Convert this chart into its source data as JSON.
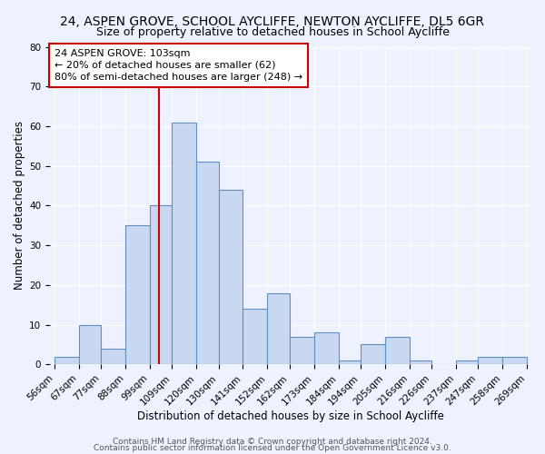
{
  "title": "24, ASPEN GROVE, SCHOOL AYCLIFFE, NEWTON AYCLIFFE, DL5 6GR",
  "subtitle": "Size of property relative to detached houses in School Aycliffe",
  "xlabel": "Distribution of detached houses by size in School Aycliffe",
  "ylabel": "Number of detached properties",
  "bin_edges": [
    56,
    67,
    77,
    88,
    99,
    109,
    120,
    130,
    141,
    152,
    162,
    173,
    184,
    194,
    205,
    216,
    226,
    237,
    247,
    258,
    269
  ],
  "bar_heights": [
    2,
    10,
    4,
    35,
    40,
    61,
    51,
    44,
    14,
    18,
    7,
    8,
    1,
    5,
    7,
    1,
    0,
    1,
    2,
    2
  ],
  "bar_color": "#c8d8f0",
  "bar_edge_color": "#6090c0",
  "property_size": 103,
  "redline_color": "#cc0000",
  "annotation_line1": "24 ASPEN GROVE: 103sqm",
  "annotation_line2": "← 20% of detached houses are smaller (62)",
  "annotation_line3": "80% of semi-detached houses are larger (248) →",
  "annotation_box_color": "#ffffff",
  "annotation_box_edge": "#cc0000",
  "ylim": [
    0,
    80
  ],
  "yticks": [
    0,
    10,
    20,
    30,
    40,
    50,
    60,
    70,
    80
  ],
  "footer_line1": "Contains HM Land Registry data © Crown copyright and database right 2024.",
  "footer_line2": "Contains public sector information licensed under the Open Government Licence v3.0.",
  "title_fontsize": 10,
  "subtitle_fontsize": 9,
  "axis_label_fontsize": 8.5,
  "tick_fontsize": 7.5,
  "annotation_fontsize": 8,
  "footer_fontsize": 6.5,
  "background_color": "#eef2ff"
}
